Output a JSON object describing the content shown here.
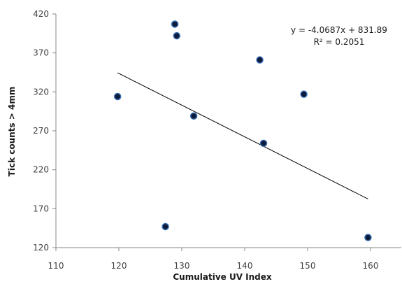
{
  "chart_data": {
    "type": "scatter",
    "title": "",
    "xlabel": "Cumulative UV Index",
    "ylabel": "Tick counts > 4mm",
    "xlim": [
      110,
      165
    ],
    "ylim": [
      120,
      420
    ],
    "xticks": [
      110,
      120,
      130,
      140,
      150,
      160
    ],
    "yticks": [
      120,
      170,
      220,
      270,
      320,
      370,
      420
    ],
    "grid": false,
    "legend": "none",
    "series": [
      {
        "x": [
          119.8,
          127.4,
          128.9,
          129.2,
          131.9,
          142.4,
          143.0,
          149.4,
          159.6
        ],
        "y": [
          314,
          147,
          407,
          392,
          289,
          361,
          254,
          317,
          133
        ]
      }
    ],
    "trendline": {
      "type": "linear",
      "slope": -4.0687,
      "intercept": 831.89,
      "x_range": [
        119.8,
        159.6
      ],
      "equation": "y = -4.0687x + 831.89",
      "r_squared": "R² = 0.2051"
    },
    "colors": {
      "marker_fill": "#0d1b3a",
      "marker_stroke": "#3a6fb5",
      "trendline": "#000000",
      "axis": "#878787"
    }
  }
}
